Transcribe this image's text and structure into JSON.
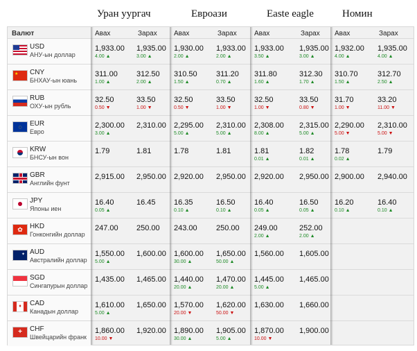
{
  "banks": [
    "Уран уургач",
    "Евроази",
    "Easte eagle",
    "Номин"
  ],
  "headers": {
    "currency": "Валют",
    "buy": "Авах",
    "sell": "Зарах"
  },
  "rows": [
    {
      "code": "USD",
      "name": "АНУ-ын доллар",
      "flag": "us-flag",
      "q": [
        [
          "1,933.00",
          "4.00",
          "up",
          "1,935.00",
          "3.00",
          "up"
        ],
        [
          "1,930.00",
          "2.00",
          "up",
          "1,933.00",
          "2.00",
          "up"
        ],
        [
          "1,933.00",
          "3.50",
          "up",
          "1,935.00",
          "3.00",
          "up"
        ],
        [
          "1,932.00",
          "4.00",
          "up",
          "1,935.00",
          "4.00",
          "up"
        ]
      ]
    },
    {
      "code": "CNY",
      "name": "БНХАУ-ын юань",
      "flag": "cn-flag",
      "q": [
        [
          "311.00",
          "1.00",
          "up",
          "312.50",
          "2.00",
          "up"
        ],
        [
          "310.50",
          "1.50",
          "up",
          "311.20",
          "0.70",
          "up"
        ],
        [
          "311.80",
          "1.60",
          "up",
          "312.30",
          "1.70",
          "up"
        ],
        [
          "310.70",
          "1.50",
          "up",
          "312.70",
          "2.50",
          "up"
        ]
      ]
    },
    {
      "code": "RUB",
      "name": "ОХУ-ын рубль",
      "flag": "ru-flag",
      "q": [
        [
          "32.50",
          "0.50",
          "down",
          "33.50",
          "1.00",
          "down"
        ],
        [
          "32.50",
          "0.50",
          "down",
          "33.50",
          "1.00",
          "down"
        ],
        [
          "32.50",
          "1.00",
          "down",
          "33.50",
          "0.80",
          "down"
        ],
        [
          "31.70",
          "1.00",
          "down",
          "33.20",
          "11.00",
          "down"
        ]
      ]
    },
    {
      "code": "EUR",
      "name": "Евро",
      "flag": "eu-flag",
      "q": [
        [
          "2,300.00",
          "3.00",
          "up",
          "2,310.00",
          "",
          ""
        ],
        [
          "2,295.00",
          "5.00",
          "up",
          "2,310.00",
          "5.00",
          "up"
        ],
        [
          "2,308.00",
          "8.00",
          "up",
          "2,315.00",
          "5.00",
          "up"
        ],
        [
          "2,290.00",
          "5.00",
          "down",
          "2,310.00",
          "5.00",
          "down"
        ]
      ]
    },
    {
      "code": "KRW",
      "name": "БНСУ-ын вон",
      "flag": "kr-flag",
      "q": [
        [
          "1.79",
          "",
          "",
          "1.81",
          "",
          ""
        ],
        [
          "1.78",
          "",
          "",
          "1.81",
          "",
          ""
        ],
        [
          "1.81",
          "0.01",
          "up",
          "1.82",
          "0.01",
          "up"
        ],
        [
          "1.78",
          "0.02",
          "up",
          "1.79",
          "",
          ""
        ]
      ]
    },
    {
      "code": "GBR",
      "name": "Английн фунт",
      "flag": "gb-flag",
      "q": [
        [
          "2,915.00",
          "",
          "",
          "2,950.00",
          "",
          ""
        ],
        [
          "2,920.00",
          "",
          "",
          "2,950.00",
          "",
          ""
        ],
        [
          "2,920.00",
          "",
          "",
          "2,950.00",
          "",
          ""
        ],
        [
          "2,900.00",
          "",
          "",
          "2,940.00",
          "",
          ""
        ]
      ]
    },
    {
      "code": "JPY",
      "name": "Японы иен",
      "flag": "jp-flag",
      "q": [
        [
          "16.40",
          "0.05",
          "up",
          "16.45",
          "",
          ""
        ],
        [
          "16.35",
          "0.10",
          "up",
          "16.50",
          "0.10",
          "up"
        ],
        [
          "16.40",
          "0.05",
          "up",
          "16.50",
          "0.05",
          "up"
        ],
        [
          "16.20",
          "0.10",
          "up",
          "16.40",
          "0.10",
          "up"
        ]
      ]
    },
    {
      "code": "HKD",
      "name": "Гонконгийн доллар",
      "flag": "hk-flag",
      "q": [
        [
          "247.00",
          "",
          "",
          "250.00",
          "",
          ""
        ],
        [
          "243.00",
          "",
          "",
          "250.00",
          "",
          ""
        ],
        [
          "249.00",
          "2.00",
          "up",
          "252.00",
          "2.00",
          "up"
        ],
        [
          "",
          "",
          "",
          "",
          "",
          ""
        ]
      ]
    },
    {
      "code": "AUD",
      "name": "Австралийн доллар",
      "flag": "au-flag",
      "q": [
        [
          "1,550.00",
          "5.00",
          "up",
          "1,600.00",
          "",
          ""
        ],
        [
          "1,600.00",
          "30.00",
          "up",
          "1,650.00",
          "50.00",
          "up"
        ],
        [
          "1,560.00",
          "",
          "",
          "1,605.00",
          "",
          ""
        ],
        [
          "",
          "",
          "",
          "",
          "",
          ""
        ]
      ]
    },
    {
      "code": "SGD",
      "name": "Сингапурын доллар",
      "flag": "sg-flag",
      "q": [
        [
          "1,435.00",
          "",
          "",
          "1,465.00",
          "",
          ""
        ],
        [
          "1,440.00",
          "20.00",
          "up",
          "1,470.00",
          "20.00",
          "up"
        ],
        [
          "1,445.00",
          "5.00",
          "up",
          "1,465.00",
          "",
          ""
        ],
        [
          "",
          "",
          "",
          "",
          "",
          ""
        ]
      ]
    },
    {
      "code": "CAD",
      "name": "Канадын доллар",
      "flag": "ca-flag",
      "q": [
        [
          "1,610.00",
          "5.00",
          "up",
          "1,650.00",
          "",
          ""
        ],
        [
          "1,570.00",
          "20.00",
          "down",
          "1,620.00",
          "50.00",
          "down"
        ],
        [
          "1,630.00",
          "",
          "",
          "1,660.00",
          "",
          ""
        ],
        [
          "",
          "",
          "",
          "",
          "",
          ""
        ]
      ]
    },
    {
      "code": "CHF",
      "name": "Швейцарийн франк",
      "flag": "ch-flag",
      "q": [
        [
          "1,860.00",
          "10.00",
          "down",
          "1,920.00",
          "",
          ""
        ],
        [
          "1,890.00",
          "30.00",
          "up",
          "1,905.00",
          "5.00",
          "up"
        ],
        [
          "1,870.00",
          "10.00",
          "down",
          "1,900.00",
          "",
          ""
        ],
        [
          "",
          "",
          "",
          "",
          "",
          ""
        ]
      ]
    }
  ]
}
